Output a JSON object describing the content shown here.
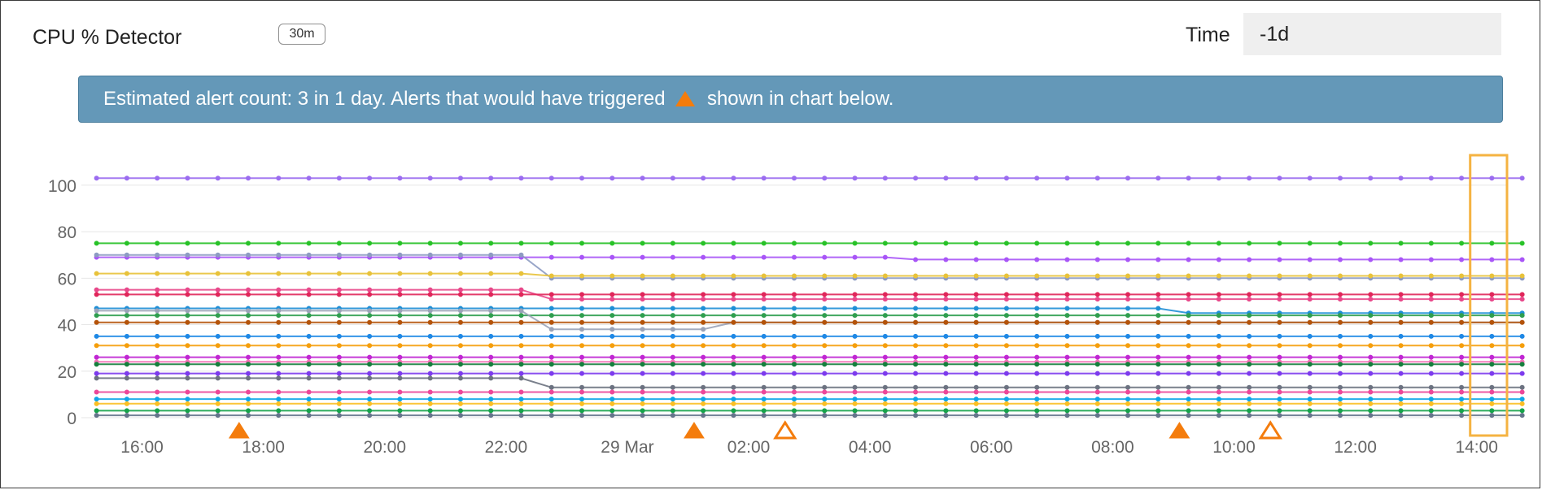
{
  "header": {
    "title": "CPU % Detector",
    "window_badge": "30m",
    "time_label": "Time",
    "time_value": "-1d"
  },
  "banner": {
    "text_before": "Estimated alert count: 3 in 1 day. Alerts that would have triggered",
    "text_after": "shown in chart below.",
    "icon": "triangle-alert-icon"
  },
  "colors": {
    "alert": "#f47c0c",
    "highlight_box": "#f5b342",
    "banner_bg": "#6498b8"
  },
  "chart_data": {
    "type": "line",
    "y_ticks": [
      "0",
      "20",
      "40",
      "60",
      "80",
      "100"
    ],
    "x_ticks": [
      "16:00",
      "18:00",
      "20:00",
      "22:00",
      "29 Mar",
      "02:00",
      "04:00",
      "06:00",
      "08:00",
      "10:00",
      "12:00",
      "14:00"
    ],
    "ylim": [
      0,
      108
    ],
    "xlim_hours": [
      15.0,
      38.5
    ],
    "x_tick_hours": [
      16,
      18,
      20,
      22,
      24,
      26,
      28,
      30,
      32,
      34,
      36,
      38
    ],
    "grid": true,
    "series": [
      {
        "color": "#9b6cf0",
        "values": [
          103
        ]
      },
      {
        "color": "#27c227",
        "values": [
          75
        ]
      },
      {
        "color": "#a855f7",
        "values": [
          69,
          69,
          69,
          69,
          69,
          69,
          69,
          69,
          69,
          68,
          68,
          68,
          68,
          68,
          68,
          68
        ]
      },
      {
        "color": "#8d9bc2",
        "values": [
          70,
          70,
          70,
          70,
          70,
          60,
          60,
          60,
          60,
          60,
          60,
          60,
          60,
          60,
          60,
          60
        ]
      },
      {
        "color": "#e8c23a",
        "values": [
          62,
          62,
          62,
          62,
          62,
          61,
          61,
          61,
          61,
          61,
          61,
          61,
          61,
          61,
          61,
          61
        ]
      },
      {
        "color": "#e8488a",
        "values": [
          55,
          55,
          55,
          55,
          55,
          51,
          51,
          51,
          51,
          51,
          51,
          51,
          51,
          51,
          51,
          51
        ]
      },
      {
        "color": "#e0265a",
        "values": [
          53,
          53,
          53,
          53,
          53,
          53,
          53,
          53,
          53,
          53,
          53,
          53,
          53,
          53,
          53,
          53
        ]
      },
      {
        "color": "#1f8fd6",
        "values": [
          47,
          47,
          47,
          47,
          47,
          47,
          47,
          47,
          47,
          47,
          47,
          47,
          45,
          45,
          45,
          45
        ]
      },
      {
        "color": "#2f9e4f",
        "values": [
          44,
          44,
          44,
          44,
          44,
          44,
          44,
          44,
          44,
          44,
          44,
          44,
          44,
          44,
          44,
          44
        ]
      },
      {
        "color": "#9aa3b8",
        "values": [
          46,
          46,
          46,
          46,
          46,
          38,
          38,
          41,
          41,
          41,
          41,
          41,
          41,
          41,
          41,
          41
        ]
      },
      {
        "color": "#b45309",
        "values": [
          41,
          41,
          41,
          41,
          41,
          41,
          41,
          41,
          41,
          41,
          41,
          41,
          41,
          41,
          41,
          41
        ]
      },
      {
        "color": "#1e88e5",
        "values": [
          35,
          35,
          35,
          35,
          35,
          35,
          35,
          35,
          35,
          35,
          35,
          35,
          35,
          35,
          35,
          35
        ]
      },
      {
        "color": "#f59e0b",
        "values": [
          31,
          31,
          31,
          31,
          31,
          31,
          31,
          31,
          31,
          31,
          31,
          31,
          31,
          31,
          31,
          31
        ]
      },
      {
        "color": "#c026d3",
        "values": [
          26,
          26,
          26,
          26,
          26,
          26,
          26,
          26,
          26,
          26,
          26,
          26,
          26,
          26,
          26,
          26
        ]
      },
      {
        "color": "#f472b6",
        "values": [
          24,
          24,
          24,
          24,
          24,
          24,
          24,
          24,
          24,
          24,
          24,
          24,
          24,
          24,
          24,
          24
        ]
      },
      {
        "color": "#15803d",
        "values": [
          23,
          23,
          23,
          23,
          23,
          23,
          23,
          23,
          23,
          23,
          23,
          23,
          23,
          23,
          23,
          23
        ]
      },
      {
        "color": "#7c3aed",
        "values": [
          19,
          19,
          19,
          19,
          19,
          19,
          19,
          19,
          19,
          19,
          19,
          19,
          19,
          19,
          19,
          19
        ]
      },
      {
        "color": "#6b7280",
        "values": [
          17,
          17,
          17,
          17,
          17,
          13,
          13,
          13,
          13,
          13,
          13,
          13,
          13,
          13,
          13,
          13
        ]
      },
      {
        "color": "#ec4899",
        "values": [
          11,
          11,
          11,
          11,
          11,
          11,
          11,
          11,
          11,
          11,
          11,
          11,
          11,
          11,
          11,
          11
        ]
      },
      {
        "color": "#0ea5e9",
        "values": [
          8,
          8,
          8,
          8,
          8,
          8,
          8,
          8,
          8,
          8,
          8,
          8,
          8,
          8,
          8,
          8
        ]
      },
      {
        "color": "#fbbf24",
        "values": [
          6,
          6,
          6,
          6,
          6,
          6,
          6,
          6,
          6,
          6,
          6,
          6,
          6,
          6,
          6,
          6
        ]
      },
      {
        "color": "#16a34a",
        "values": [
          3,
          3,
          3,
          3,
          3,
          3,
          3,
          3,
          3,
          3,
          3,
          3,
          3,
          3,
          3,
          3
        ]
      },
      {
        "color": "#64748b",
        "values": [
          1,
          1,
          1,
          1,
          1,
          1,
          1,
          1,
          1,
          1,
          1,
          1,
          1,
          1,
          1,
          1
        ]
      }
    ],
    "alerts": [
      {
        "x_hour": 17.6,
        "kind": "filled"
      },
      {
        "x_hour": 25.1,
        "kind": "filled"
      },
      {
        "x_hour": 26.6,
        "kind": "hollow"
      },
      {
        "x_hour": 33.1,
        "kind": "filled"
      },
      {
        "x_hour": 34.6,
        "kind": "hollow"
      }
    ],
    "highlight_range_hours": [
      38.0,
      38.5
    ]
  }
}
